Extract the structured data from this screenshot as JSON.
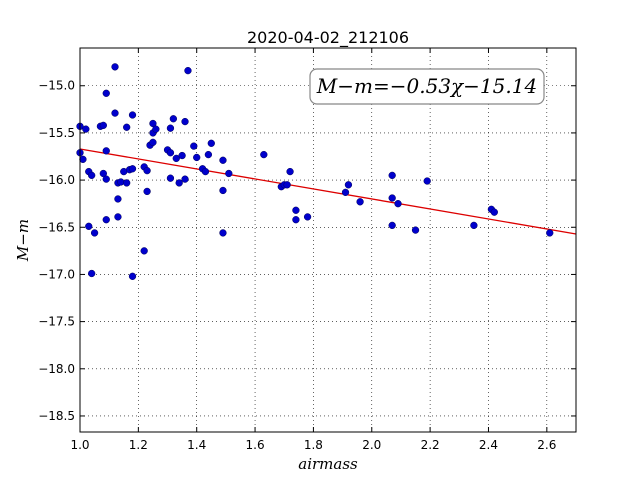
{
  "chart_data": {
    "type": "scatter",
    "title": "2020-04-02_212106",
    "xlabel": "airmass",
    "ylabel": "M−m",
    "xlim": [
      1.0,
      2.7
    ],
    "ylim": [
      -18.67,
      -14.6
    ],
    "y_inverted": true,
    "grid": true,
    "x_ticks": [
      1.0,
      1.2,
      1.4,
      1.6,
      1.8,
      2.0,
      2.2,
      2.4,
      2.6
    ],
    "y_ticks": [
      -15.0,
      -15.5,
      -16.0,
      -16.5,
      -17.0,
      -17.5,
      -18.0,
      -18.5
    ],
    "x_tick_labels": [
      "1.0",
      "1.2",
      "1.4",
      "1.6",
      "1.8",
      "2.0",
      "2.2",
      "2.4",
      "2.6"
    ],
    "y_tick_labels": [
      "−15.0",
      "−15.5",
      "−16.0",
      "−16.5",
      "−17.0",
      "−17.5",
      "−18.0",
      "−18.5"
    ],
    "annotation": "M−m=−0.53χ−15.14",
    "annotation_position": "top-right",
    "fit": {
      "slope": -0.53,
      "intercept": -15.14,
      "color": "#dd0000"
    },
    "point_color": "#0000cc",
    "points": [
      {
        "x": 1.0,
        "y": -15.43
      },
      {
        "x": 1.0,
        "y": -15.71
      },
      {
        "x": 1.01,
        "y": -15.78
      },
      {
        "x": 1.02,
        "y": -15.46
      },
      {
        "x": 1.03,
        "y": -15.91
      },
      {
        "x": 1.04,
        "y": -15.95
      },
      {
        "x": 1.03,
        "y": -16.49
      },
      {
        "x": 1.05,
        "y": -16.56
      },
      {
        "x": 1.04,
        "y": -16.99
      },
      {
        "x": 1.07,
        "y": -15.43
      },
      {
        "x": 1.08,
        "y": -15.42
      },
      {
        "x": 1.08,
        "y": -15.93
      },
      {
        "x": 1.09,
        "y": -15.99
      },
      {
        "x": 1.09,
        "y": -15.69
      },
      {
        "x": 1.09,
        "y": -15.08
      },
      {
        "x": 1.09,
        "y": -16.42
      },
      {
        "x": 1.12,
        "y": -14.8
      },
      {
        "x": 1.12,
        "y": -15.29
      },
      {
        "x": 1.13,
        "y": -16.03
      },
      {
        "x": 1.13,
        "y": -16.2
      },
      {
        "x": 1.13,
        "y": -16.39
      },
      {
        "x": 1.14,
        "y": -16.02
      },
      {
        "x": 1.15,
        "y": -15.91
      },
      {
        "x": 1.16,
        "y": -16.03
      },
      {
        "x": 1.16,
        "y": -15.44
      },
      {
        "x": 1.17,
        "y": -15.89
      },
      {
        "x": 1.18,
        "y": -15.88
      },
      {
        "x": 1.18,
        "y": -15.31
      },
      {
        "x": 1.18,
        "y": -17.02
      },
      {
        "x": 1.22,
        "y": -15.86
      },
      {
        "x": 1.23,
        "y": -15.9
      },
      {
        "x": 1.23,
        "y": -16.12
      },
      {
        "x": 1.22,
        "y": -16.75
      },
      {
        "x": 1.24,
        "y": -15.63
      },
      {
        "x": 1.25,
        "y": -15.4
      },
      {
        "x": 1.25,
        "y": -15.5
      },
      {
        "x": 1.26,
        "y": -15.46
      },
      {
        "x": 1.25,
        "y": -15.6
      },
      {
        "x": 1.3,
        "y": -15.68
      },
      {
        "x": 1.31,
        "y": -15.98
      },
      {
        "x": 1.31,
        "y": -15.71
      },
      {
        "x": 1.31,
        "y": -15.45
      },
      {
        "x": 1.32,
        "y": -15.35
      },
      {
        "x": 1.33,
        "y": -15.77
      },
      {
        "x": 1.34,
        "y": -16.03
      },
      {
        "x": 1.35,
        "y": -15.74
      },
      {
        "x": 1.36,
        "y": -15.38
      },
      {
        "x": 1.36,
        "y": -15.99
      },
      {
        "x": 1.37,
        "y": -14.84
      },
      {
        "x": 1.39,
        "y": -15.64
      },
      {
        "x": 1.4,
        "y": -15.76
      },
      {
        "x": 1.42,
        "y": -15.88
      },
      {
        "x": 1.43,
        "y": -15.91
      },
      {
        "x": 1.44,
        "y": -15.73
      },
      {
        "x": 1.45,
        "y": -15.61
      },
      {
        "x": 1.49,
        "y": -15.79
      },
      {
        "x": 1.49,
        "y": -16.11
      },
      {
        "x": 1.49,
        "y": -16.56
      },
      {
        "x": 1.51,
        "y": -15.93
      },
      {
        "x": 1.63,
        "y": -15.73
      },
      {
        "x": 1.69,
        "y": -16.07
      },
      {
        "x": 1.7,
        "y": -16.05
      },
      {
        "x": 1.71,
        "y": -16.05
      },
      {
        "x": 1.72,
        "y": -15.91
      },
      {
        "x": 1.74,
        "y": -16.32
      },
      {
        "x": 1.74,
        "y": -16.42
      },
      {
        "x": 1.78,
        "y": -16.39
      },
      {
        "x": 1.91,
        "y": -16.13
      },
      {
        "x": 1.92,
        "y": -16.05
      },
      {
        "x": 1.96,
        "y": -16.23
      },
      {
        "x": 2.07,
        "y": -15.95
      },
      {
        "x": 2.07,
        "y": -16.19
      },
      {
        "x": 2.07,
        "y": -16.48
      },
      {
        "x": 2.09,
        "y": -16.25
      },
      {
        "x": 2.15,
        "y": -16.53
      },
      {
        "x": 2.19,
        "y": -16.01
      },
      {
        "x": 2.35,
        "y": -16.48
      },
      {
        "x": 2.41,
        "y": -16.31
      },
      {
        "x": 2.42,
        "y": -16.34
      },
      {
        "x": 2.61,
        "y": -16.56
      }
    ]
  }
}
